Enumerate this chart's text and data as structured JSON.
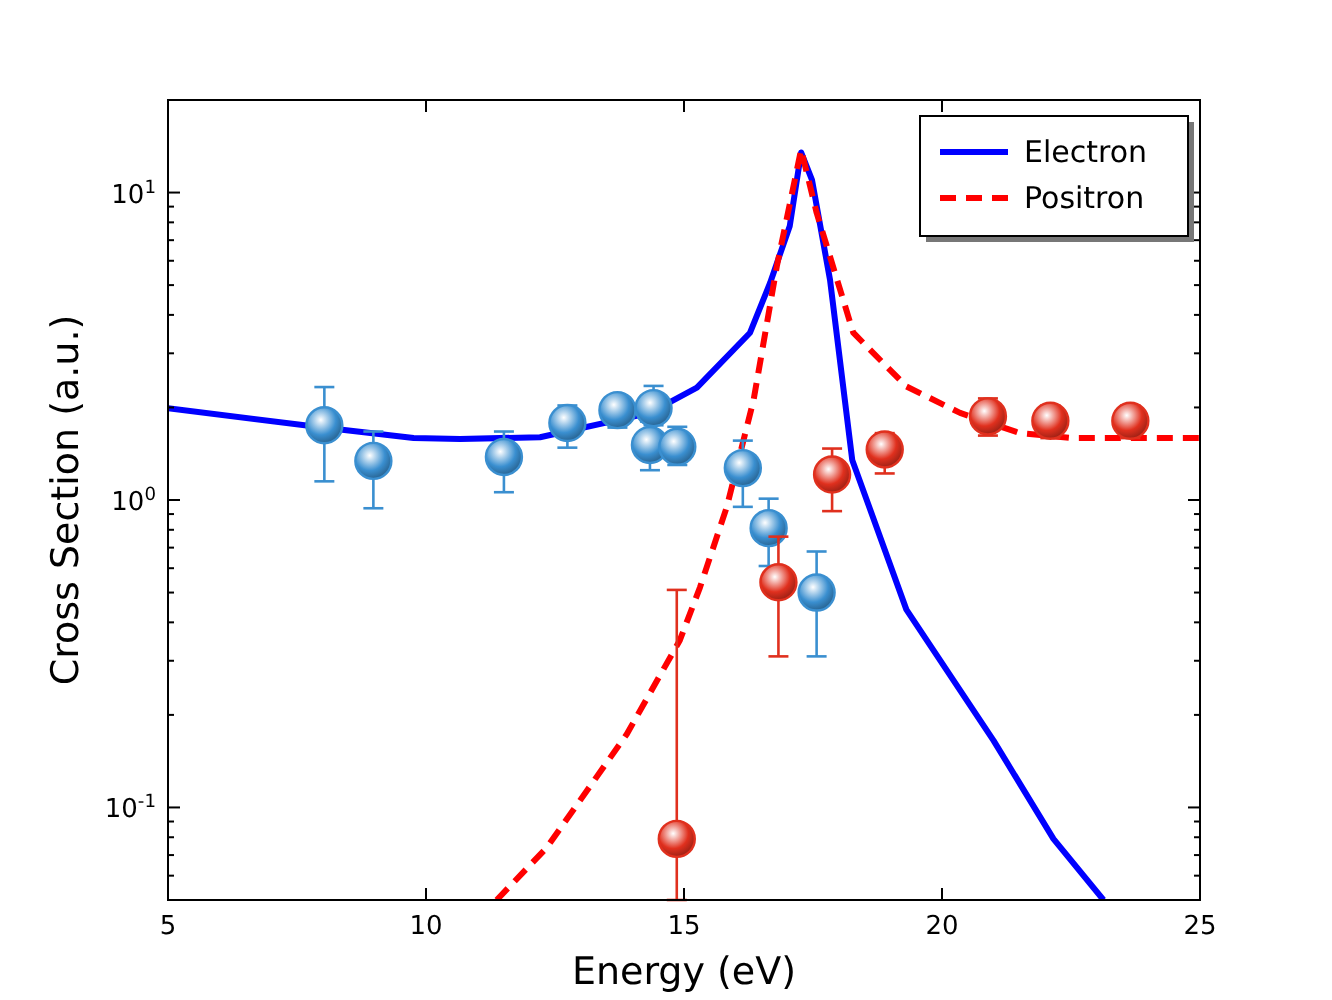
{
  "chart_data": {
    "type": "line",
    "xlabel": "Energy (eV)",
    "ylabel": "Cross Section (a.u.)",
    "log": "y",
    "grid": false,
    "legend": "top right",
    "xlim": [
      5,
      25
    ],
    "xticks": [
      5,
      10,
      15,
      20,
      25
    ],
    "ylim": [
      0.05,
      20
    ],
    "yticks": [
      {
        "value": 0.05,
        "label": null
      },
      {
        "value": 0.06,
        "label": null
      },
      {
        "value": 0.07,
        "label": null
      },
      {
        "value": 0.08,
        "label": null
      },
      {
        "value": 0.09,
        "label": null
      },
      {
        "value": 0.1,
        "label": "10$^{-1}$"
      },
      {
        "value": 0.2,
        "label": null
      },
      {
        "value": 0.3,
        "label": null
      },
      {
        "value": 0.4,
        "label": null
      },
      {
        "value": 0.5,
        "label": null
      },
      {
        "value": 0.6,
        "label": null
      },
      {
        "value": 0.7,
        "label": null
      },
      {
        "value": 0.8,
        "label": null
      },
      {
        "value": 0.9,
        "label": null
      },
      {
        "value": 1,
        "label": "10$^{0}$"
      },
      {
        "value": 2,
        "label": null
      },
      {
        "value": 3,
        "label": null
      },
      {
        "value": 4,
        "label": null
      },
      {
        "value": 5,
        "label": null
      },
      {
        "value": 6,
        "label": null
      },
      {
        "value": 7,
        "label": null
      },
      {
        "value": 8,
        "label": null
      },
      {
        "value": 9,
        "label": null
      },
      {
        "value": 10,
        "label": "10$^{1}$"
      },
      {
        "value": 20,
        "label": null
      }
    ],
    "series": [
      {
        "name": "Electron",
        "color": "#0000ff",
        "line_style": "solid",
        "marker": "none",
        "x": [
          5,
          8.0,
          9.76,
          10.66,
          12.21,
          14.34,
          15.25,
          16.28,
          16.67,
          17.05,
          17.27,
          17.48,
          17.83,
          18.26,
          19.31,
          21.0,
          22.16,
          23.13
        ],
        "values": [
          1.99,
          1.72,
          1.59,
          1.58,
          1.6,
          1.92,
          2.32,
          3.5,
          5.09,
          7.79,
          13.5,
          11.0,
          5.2,
          1.35,
          0.44,
          0.165,
          0.079,
          0.05
        ]
      },
      {
        "name": "Positron",
        "color": "#ff0000",
        "line_style": "dashed",
        "marker": "none",
        "x": [
          11.37,
          12.34,
          13.89,
          14.92,
          15.31,
          15.83,
          16.35,
          16.8,
          17.27,
          17.57,
          18.28,
          19.31,
          20.35,
          21.51,
          22.55,
          24.87,
          25
        ],
        "values": [
          0.05,
          0.074,
          0.173,
          0.35,
          0.52,
          0.95,
          2.12,
          5.77,
          13.8,
          8.6,
          3.5,
          2.34,
          1.92,
          1.65,
          1.59,
          1.59,
          1.59
        ]
      },
      {
        "type": "scatter",
        "color": "#3a8fd0",
        "marker": "circle",
        "x": [
          8.03,
          8.98,
          11.51,
          12.74,
          13.71,
          14.41,
          14.34,
          14.87,
          16.14,
          16.64,
          17.57
        ],
        "values": [
          1.75,
          1.34,
          1.38,
          1.78,
          1.96,
          1.99,
          1.51,
          1.49,
          1.27,
          0.81,
          0.5
        ],
        "errors": [
          [
            1.15,
            2.33
          ],
          [
            0.94,
            1.67
          ],
          [
            1.06,
            1.67
          ],
          [
            1.48,
            2.03
          ],
          [
            1.72,
            2.14
          ],
          [
            1.75,
            2.35
          ],
          [
            1.25,
            1.8
          ],
          [
            1.3,
            1.73
          ],
          [
            0.95,
            1.56
          ],
          [
            0.61,
            1.01
          ],
          [
            0.31,
            0.68
          ]
        ]
      },
      {
        "type": "scatter",
        "color": "#e0301e",
        "marker": "circle",
        "x": [
          14.86,
          16.83,
          17.87,
          18.89,
          20.89,
          22.1,
          23.65
        ],
        "values": [
          0.079,
          0.54,
          1.21,
          1.46,
          1.87,
          1.81,
          1.81
        ],
        "errors": [
          [
            0.05,
            0.51
          ],
          [
            0.31,
            0.76
          ],
          [
            0.92,
            1.47
          ],
          [
            1.22,
            1.65
          ],
          [
            1.62,
            2.14
          ],
          [
            1.59,
            2.03
          ],
          [
            1.59,
            2.03
          ]
        ]
      }
    ]
  }
}
